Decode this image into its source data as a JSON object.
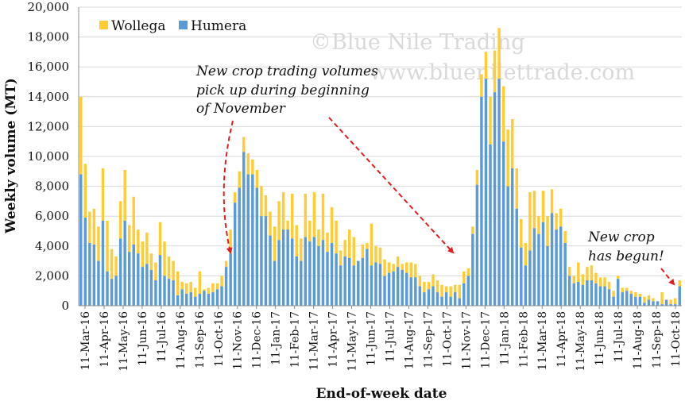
{
  "chart_data": {
    "type": "bar",
    "stacked": true,
    "xlabel": "End-of-week date",
    "ylabel": "Weekly volume (MT)",
    "ylim": [
      0,
      20000
    ],
    "yticks": [
      0,
      2000,
      4000,
      6000,
      8000,
      10000,
      12000,
      14000,
      16000,
      18000,
      20000
    ],
    "ytick_labels": [
      "0",
      "2,000",
      "4,000",
      "6,000",
      "8,000",
      "10,000",
      "12,000",
      "14,000",
      "16,000",
      "18,000",
      "20,000"
    ],
    "grid": "horizontal",
    "legend_position": "top-left",
    "tick_labels": [
      "11-Mar-16",
      "11-Apr-16",
      "11-May-16",
      "11-Jun-16",
      "11-Jul-16",
      "11-Aug-16",
      "11-Sep-16",
      "11-Oct-16",
      "11-Nov-16",
      "11-Dec-16",
      "11-Jan-17",
      "11-Feb-17",
      "11-Mar-17",
      "11-Apr-17",
      "11-May-17",
      "11-Jun-17",
      "11-Jul-17",
      "11-Aug-17",
      "11-Sep-17",
      "11-Oct-17",
      "11-Nov-17",
      "11-Dec-17",
      "11-Jan-18",
      "11-Feb-18",
      "11-Mar-18",
      "11-Apr-18",
      "11-May-18",
      "11-Jun-18",
      "11-Jul-18",
      "11-Aug-18",
      "11-Sep-18",
      "11-Oct-18"
    ],
    "weeks": 137,
    "series": [
      {
        "name": "Humera",
        "color": "#5b9bd5",
        "values": [
          8800,
          5900,
          4200,
          4100,
          3000,
          5700,
          2300,
          1800,
          2000,
          4500,
          5700,
          3600,
          4100,
          3500,
          2600,
          2800,
          2400,
          1700,
          3400,
          2000,
          1800,
          1700,
          700,
          1100,
          800,
          900,
          600,
          800,
          1000,
          800,
          900,
          1100,
          1300,
          2600,
          3500,
          6900,
          7900,
          10300,
          8800,
          8800,
          7900,
          6000,
          6000,
          4700,
          3000,
          4400,
          5100,
          5100,
          4500,
          3300,
          3000,
          4600,
          4300,
          4600,
          4000,
          4400,
          3600,
          4200,
          3500,
          2700,
          3300,
          3200,
          2700,
          3000,
          3200,
          3800,
          2700,
          2900,
          2800,
          2000,
          2200,
          2300,
          2600,
          2400,
          2200,
          1900,
          1900,
          1300,
          900,
          1100,
          1300,
          900,
          600,
          900,
          600,
          900,
          500,
          1500,
          2000,
          4800,
          8100,
          14000,
          15200,
          10800,
          14300,
          15200,
          11000,
          8000,
          9200,
          6500,
          3900,
          2700,
          3700,
          5200,
          4800,
          5600,
          4000,
          6200,
          5100,
          5300,
          4200,
          2000,
          1500,
          1600,
          1400,
          1700,
          1700,
          1500,
          1300,
          1300,
          1100,
          600,
          1800,
          900,
          1000,
          800,
          600,
          600,
          200,
          400,
          300,
          300,
          100,
          400,
          100,
          100,
          1300
        ],
        "total_values": [
          14000,
          9500,
          6300,
          6500,
          5300,
          9200,
          5700,
          3800,
          3300,
          7000,
          9100,
          5400,
          7300,
          5100,
          4300,
          4900,
          3500,
          2900,
          5600,
          4300,
          3300,
          3000,
          2300,
          1600,
          1500,
          1600,
          1200,
          2300,
          1100,
          1200,
          1500,
          1500,
          2000,
          3000,
          5100,
          7600,
          9000,
          11300,
          10200,
          9800,
          9100,
          8000,
          7400,
          6300,
          5300,
          7000,
          7600,
          5700,
          7500,
          5400,
          4500,
          7500,
          5700,
          7600,
          5100,
          7500,
          4900,
          6600,
          5700,
          3700,
          4400,
          5100,
          4600,
          3000,
          4100,
          4200,
          5500,
          4000,
          3900,
          3100,
          2900,
          2800,
          3300,
          2800,
          2900,
          2900,
          2800,
          2000,
          1600,
          1600,
          2100,
          1700,
          1400,
          1300,
          1300,
          1400,
          1400,
          2300,
          2500,
          5300,
          9100,
          15500,
          17000,
          14000,
          17100,
          18600,
          14700,
          11800,
          12500,
          9200,
          5800,
          4200,
          7600,
          7700,
          6000,
          7700,
          6000,
          7800,
          6200,
          6500,
          5000,
          2600,
          2000,
          2900,
          2100,
          2600,
          2700,
          2200,
          1900,
          1900,
          1600,
          1000,
          2000,
          1200,
          1200,
          1000,
          900,
          800,
          600,
          700,
          500,
          300,
          900,
          300,
          400,
          500,
          1700
        ]
      },
      {
        "name": "Wollega",
        "color": "#ffcc33",
        "stacked_on": "Humera"
      }
    ],
    "annotations": [
      {
        "text_lines": [
          "New crop trading volumes",
          "pick up during beginning",
          "of November"
        ],
        "arrow_targets": [
          "11-Nov-16",
          "11-Oct-17"
        ]
      },
      {
        "text_lines": [
          "New crop",
          "has begun!"
        ],
        "arrow_targets": [
          "11-Oct-18"
        ]
      }
    ],
    "watermark_lines": [
      "©Blue Nile Trading",
      "www.bluenilettrade.com"
    ]
  }
}
